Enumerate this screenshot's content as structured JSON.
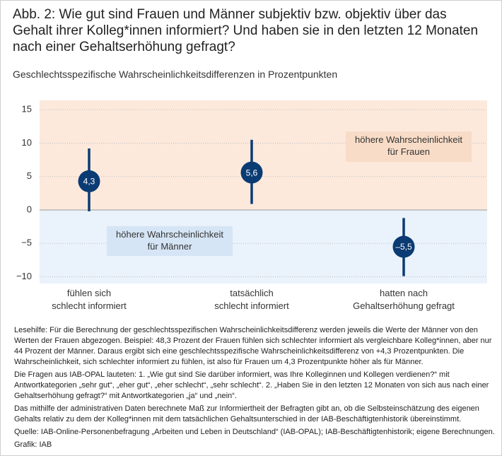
{
  "chart_data": {
    "type": "dot-interval",
    "title": "Abb. 2: Wie gut sind Frauen und Männer subjektiv bzw. objektiv über das\nGehalt ihrer Kolleg*innen informiert? Und haben sie in den letzten 12 Monaten\nnach einer Gehaltserhöhung gefragt?",
    "subtitle": "Geschlechtsspezifische Wahrscheinlichkeitsdifferenzen in Prozentpunkten",
    "categories": [
      "fühlen sich\nschlecht informiert",
      "tatsächlich\nschlecht informiert",
      "hatten nach\nGehaltserhöhung gefragt"
    ],
    "values": [
      4.3,
      5.6,
      -5.5
    ],
    "value_labels": [
      "4,3",
      "5,6",
      "–5,5"
    ],
    "lower": [
      -0.2,
      0.9,
      -9.9
    ],
    "upper": [
      9.2,
      10.5,
      -1.2
    ],
    "color": "#0b3b73",
    "ylim": [
      -11,
      16.4
    ],
    "yticks": [
      15,
      10,
      5,
      0,
      {
        "value": -5,
        "label": "−5"
      },
      {
        "value": -10,
        "label": "−10"
      }
    ],
    "grid": true,
    "annotations": [
      "höhere Wahrscheinlichkeit\nfür Frauen",
      "höhere Wahrscheinlichkeit\nfür Männer"
    ],
    "notes": [
      "Lesehilfe: Für die Berechnung der geschlechtsspezifischen Wahrscheinlichkeitsdifferenz werden jeweils die Werte der Männer von den Werten der Frauen abgezogen. Beispiel: 48,3 Prozent der Frauen fühlen sich schlechter informiert als vergleichbare Kolleg*innen, aber nur 44 Prozent der Männer. Daraus ergibt sich eine geschlechtsspezifische Wahrscheinlichkeitsdifferenz von +4,3 Prozentpunkten. Die Wahrscheinlichkeit, sich schlechter informiert zu fühlen, ist also für Frauen um 4,3 Prozentpunkte höher als für Männer.",
      "Die Fragen aus IAB-OPAL lauteten: 1. „Wie gut sind Sie darüber informiert, was Ihre Kolleginnen und Kollegen verdienen?“ mit Antwortkategorien „sehr gut“, „eher gut“, „eher schlecht“, „sehr schlecht“. 2. „Haben Sie in den letzten 12 Monaten von sich aus nach einer Gehaltserhöhung gefragt?“ mit Antwortkategorien „ja“ und „nein“.",
      "Das mithilfe der administrativen Daten berechnete Maß zur Informiertheit der Befragten gibt an, ob die Selbsteinschätzung des eigenen Gehalts relativ zu dem der Kolleg*innen mit dem tatsächlichen Gehaltsunterschied in der IAB-Beschäftigtenhistorik übereinstimmt.",
      "Quelle: IAB-Online-Personenbefragung „Arbeiten und Leben in Deutschland“ (IAB-OPAL); IAB-Beschäftigtenhistorik; eigene Berechnungen.",
      "Grafik: IAB"
    ]
  }
}
